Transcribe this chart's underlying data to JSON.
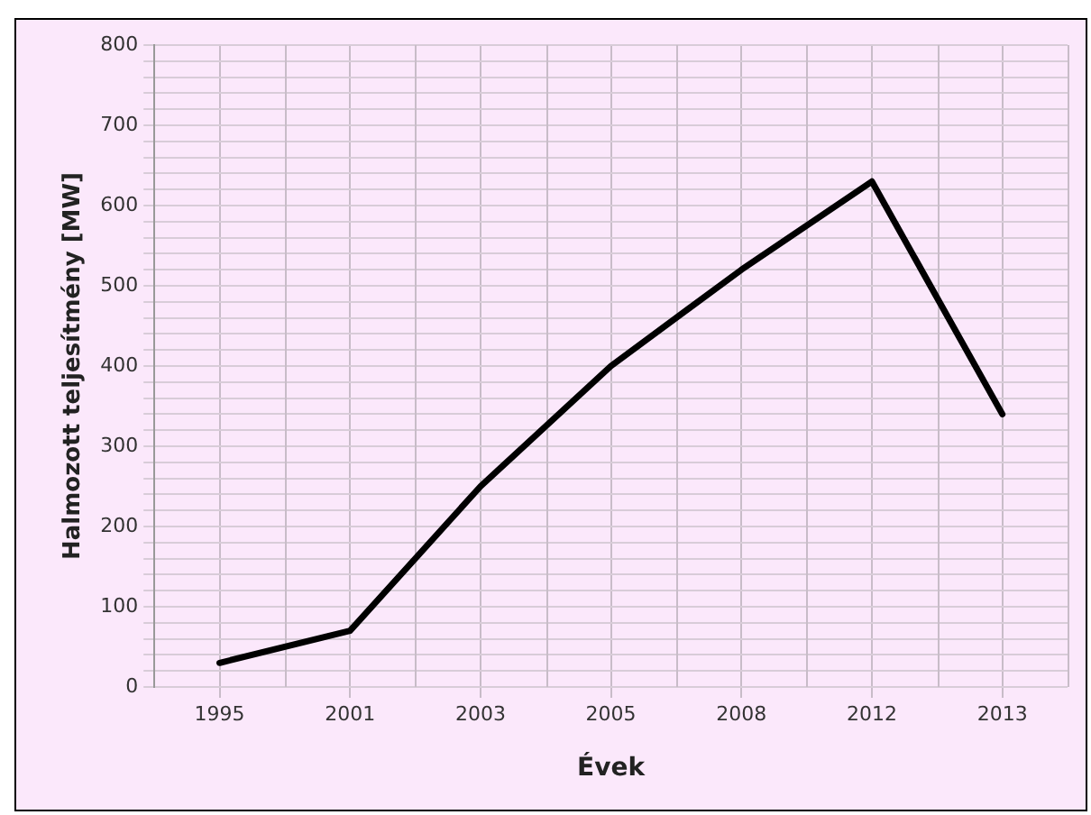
{
  "chart_data": {
    "type": "line",
    "xlabel": "Évek",
    "ylabel": "Halmozott teljesítmény [MW]",
    "categories": [
      "1995",
      "2001",
      "2003",
      "2005",
      "2008",
      "2012",
      "2013"
    ],
    "series": [
      {
        "color": "#000000",
        "values": [
          30,
          70,
          250,
          400,
          520,
          630,
          340
        ]
      }
    ],
    "ylim": [
      0,
      800
    ],
    "yticks": [
      0,
      {
        "value": 20,
        "label": null
      },
      {
        "value": 40,
        "label": null
      },
      {
        "value": 60,
        "label": null
      },
      {
        "value": 80,
        "label": null
      },
      100,
      {
        "value": 120,
        "label": null
      },
      {
        "value": 140,
        "label": null
      },
      {
        "value": 160,
        "label": null
      },
      {
        "value": 180,
        "label": null
      },
      200,
      {
        "value": 220,
        "label": null
      },
      {
        "value": 240,
        "label": null
      },
      {
        "value": 260,
        "label": null
      },
      {
        "value": 280,
        "label": null
      },
      300,
      {
        "value": 320,
        "label": null
      },
      {
        "value": 340,
        "label": null
      },
      {
        "value": 360,
        "label": null
      },
      {
        "value": 380,
        "label": null
      },
      400,
      {
        "value": 420,
        "label": null
      },
      {
        "value": 440,
        "label": null
      },
      {
        "value": 460,
        "label": null
      },
      {
        "value": 480,
        "label": null
      },
      500,
      {
        "value": 520,
        "label": null
      },
      {
        "value": 540,
        "label": null
      },
      {
        "value": 560,
        "label": null
      },
      {
        "value": 580,
        "label": null
      },
      600,
      {
        "value": 620,
        "label": null
      },
      {
        "value": 640,
        "label": null
      },
      {
        "value": 660,
        "label": null
      },
      {
        "value": 680,
        "label": null
      },
      700,
      {
        "value": 720,
        "label": null
      },
      {
        "value": 740,
        "label": null
      },
      {
        "value": 760,
        "label": null
      },
      {
        "value": 780,
        "label": null
      },
      800
    ],
    "grid": true,
    "legend": false,
    "marker": "none",
    "line_style": "solid"
  }
}
